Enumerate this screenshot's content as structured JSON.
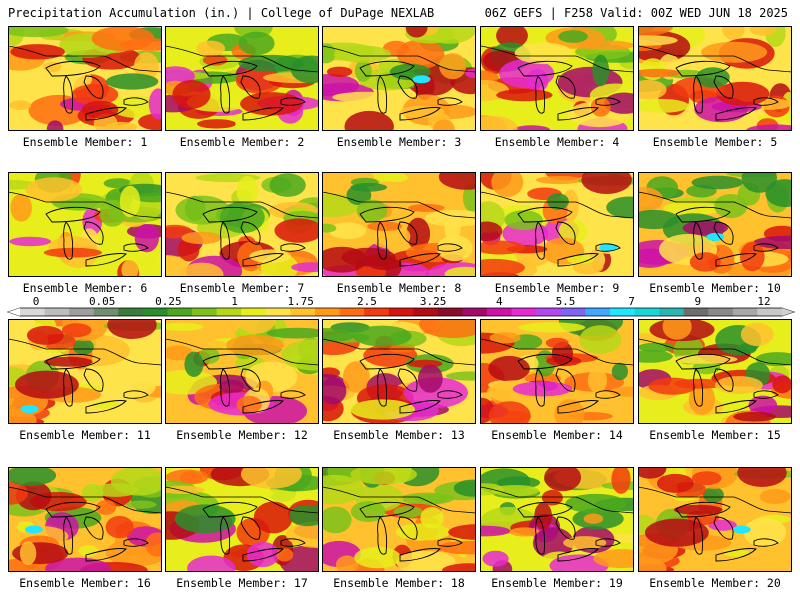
{
  "header": {
    "left": "Precipitation Accumulation (in.) | College of DuPage NEXLAB",
    "right": "06Z GEFS | F258 Valid: 00Z WED JUN 18 2025"
  },
  "panels": [
    {
      "caption": "Ensemble Member: 1"
    },
    {
      "caption": "Ensemble Member: 2"
    },
    {
      "caption": "Ensemble Member: 3"
    },
    {
      "caption": "Ensemble Member: 4"
    },
    {
      "caption": "Ensemble Member: 5"
    },
    {
      "caption": "Ensemble Member: 6"
    },
    {
      "caption": "Ensemble Member: 7"
    },
    {
      "caption": "Ensemble Member: 8"
    },
    {
      "caption": "Ensemble Member: 9"
    },
    {
      "caption": "Ensemble Member: 10"
    },
    {
      "caption": "Ensemble Member: 11"
    },
    {
      "caption": "Ensemble Member: 12"
    },
    {
      "caption": "Ensemble Member: 13"
    },
    {
      "caption": "Ensemble Member: 14"
    },
    {
      "caption": "Ensemble Member: 15"
    },
    {
      "caption": "Ensemble Member: 16"
    },
    {
      "caption": "Ensemble Member: 17"
    },
    {
      "caption": "Ensemble Member: 18"
    },
    {
      "caption": "Ensemble Member: 19"
    },
    {
      "caption": "Ensemble Member: 20"
    }
  ],
  "colorbar": {
    "labels": [
      "0",
      "0.05",
      "0.25",
      "1",
      "1.75",
      "2.5",
      "3.25",
      "4",
      "5.5",
      "7",
      "9",
      "12"
    ],
    "colors": [
      "#d9d9d9",
      "#bdbdbd",
      "#9e9e9e",
      "#6f8f6f",
      "#3d7a3d",
      "#2a8f2a",
      "#4aa81e",
      "#7cc21a",
      "#b6d817",
      "#e8ee1c",
      "#ffe34a",
      "#ffc12e",
      "#ff9a1a",
      "#ff6e12",
      "#f23b0f",
      "#d8150c",
      "#b50c14",
      "#8c0a2a",
      "#a30a6a",
      "#cc12a8",
      "#e62ad2",
      "#b348f0",
      "#7e63f5",
      "#3fa8ff",
      "#22e6ff",
      "#19d6d6",
      "#2ab5b5",
      "#6e6e6e",
      "#8a8a8a",
      "#a8a8a8",
      "#c8c8c8"
    ]
  }
}
